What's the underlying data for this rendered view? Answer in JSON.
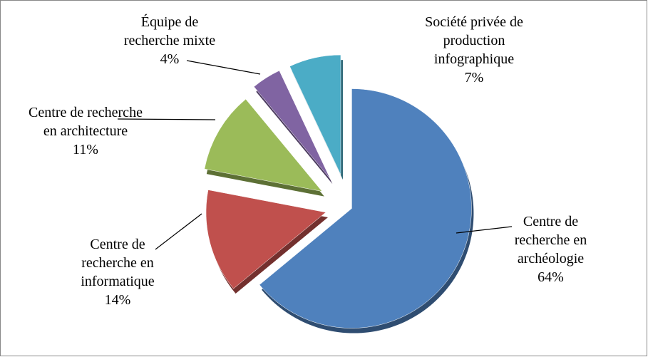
{
  "chart_data": {
    "type": "pie",
    "categories": [
      "Centre de recherche en archéologie",
      "Centre de recherche en informatique",
      "Centre de recherche en architecture",
      "Équipe de recherche mixte",
      "Société privée de production infographique"
    ],
    "values": [
      64,
      14,
      11,
      4,
      7
    ],
    "value_labels": [
      "64%",
      "14%",
      "11%",
      "4%",
      "7%"
    ],
    "colors": [
      "#4f81bd",
      "#c0504d",
      "#9bbb59",
      "#8064a2",
      "#4bacc6"
    ]
  }
}
